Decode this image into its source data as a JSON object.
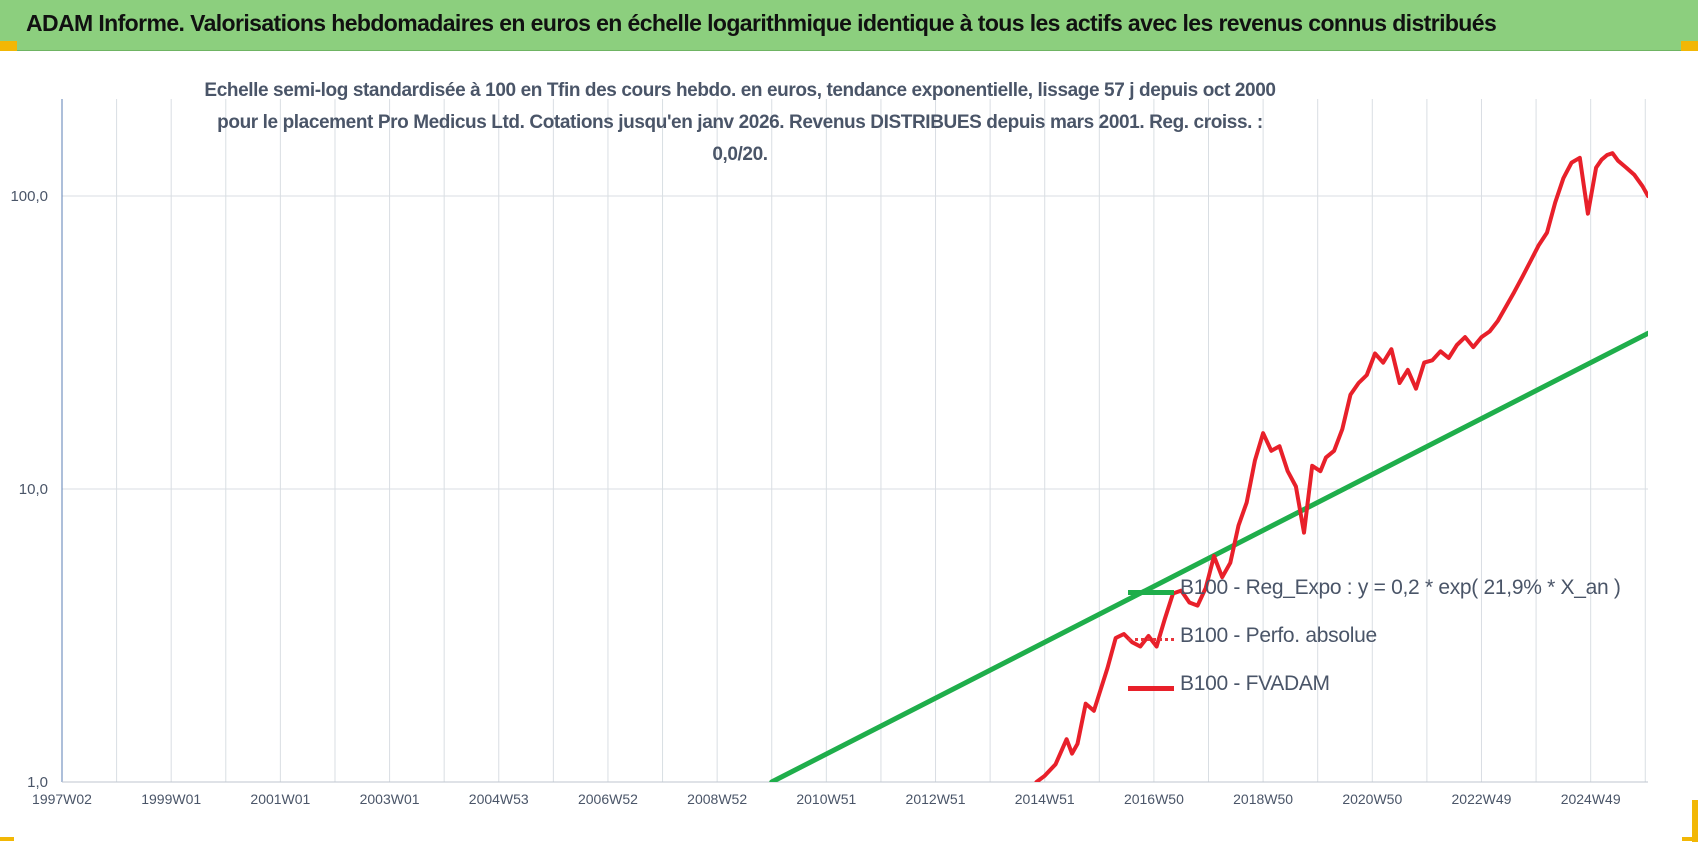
{
  "banner": {
    "title": "ADAM Informe. Valorisations hebdomadaires en euros en échelle logarithmique identique à tous les actifs avec les revenus connus distribués"
  },
  "colors": {
    "banner_bg": "#8ccf7e",
    "corner_accent": "#f2b705",
    "series_red": "#e8202a",
    "series_green": "#1fae4b",
    "axis_text": "#4a5568",
    "grid": "#d9dee3"
  },
  "chart_data": {
    "type": "line",
    "title": "Echelle semi-log standardisée à 100 en Tfin des cours hebdo. en euros, tendance exponentielle, lissage 57 j depuis oct 2000 pour le placement Pro Medicus Ltd. Cotations jusqu'en janv 2026. Revenus DISTRIBUES depuis mars 2001. Reg. croiss. : 0,0/20.",
    "y_scale": "log",
    "ylim": [
      1,
      200
    ],
    "y_ticks": [
      {
        "value": 1,
        "label": "1,0"
      },
      {
        "value": 10,
        "label": "10,0"
      },
      {
        "value": 100,
        "label": "100,0"
      }
    ],
    "xlim": [
      1997.0,
      2026.05
    ],
    "x_ticks": [
      {
        "value": 1997.0,
        "label": "1997W02"
      },
      {
        "value": 1999.0,
        "label": "1999W01"
      },
      {
        "value": 2001.0,
        "label": "2001W01"
      },
      {
        "value": 2003.0,
        "label": "2003W01"
      },
      {
        "value": 2005.0,
        "label": "2004W53"
      },
      {
        "value": 2007.0,
        "label": "2006W52"
      },
      {
        "value": 2009.0,
        "label": "2008W52"
      },
      {
        "value": 2011.0,
        "label": "2010W51"
      },
      {
        "value": 2013.0,
        "label": "2012W51"
      },
      {
        "value": 2015.0,
        "label": "2014W51"
      },
      {
        "value": 2017.0,
        "label": "2016W50"
      },
      {
        "value": 2019.0,
        "label": "2018W50"
      },
      {
        "value": 2021.0,
        "label": "2020W50"
      },
      {
        "value": 2023.0,
        "label": "2022W49"
      },
      {
        "value": 2025.0,
        "label": "2024W49"
      }
    ],
    "grid": true,
    "legend_position": "center-right",
    "series": [
      {
        "name": "B100 - Reg_Expo : y = 0,2 * exp( 21,9% *  X_an )",
        "style": "solid",
        "color": "#1fae4b",
        "x": [
          2010.0,
          2026.05
        ],
        "y": [
          1.0,
          34.0
        ]
      },
      {
        "name": "B100 - Perfo. absolue",
        "style": "dotted",
        "color": "#e8343b",
        "x": [],
        "y": []
      },
      {
        "name": "B100 - FVADAM",
        "style": "solid",
        "color": "#e8202a",
        "x": [
          2014.85,
          2015.0,
          2015.2,
          2015.4,
          2015.5,
          2015.6,
          2015.75,
          2015.9,
          2016.0,
          2016.15,
          2016.3,
          2016.45,
          2016.6,
          2016.75,
          2016.9,
          2017.05,
          2017.2,
          2017.35,
          2017.5,
          2017.65,
          2017.8,
          2017.95,
          2018.1,
          2018.25,
          2018.4,
          2018.55,
          2018.7,
          2018.85,
          2019.0,
          2019.15,
          2019.3,
          2019.45,
          2019.6,
          2019.75,
          2019.9,
          2020.05,
          2020.15,
          2020.3,
          2020.45,
          2020.6,
          2020.75,
          2020.9,
          2021.05,
          2021.2,
          2021.35,
          2021.5,
          2021.65,
          2021.8,
          2021.95,
          2022.1,
          2022.25,
          2022.4,
          2022.55,
          2022.7,
          2022.85,
          2023.0,
          2023.15,
          2023.3,
          2023.45,
          2023.6,
          2023.75,
          2023.9,
          2024.05,
          2024.2,
          2024.35,
          2024.5,
          2024.65,
          2024.8,
          2024.95,
          2025.1,
          2025.2,
          2025.3,
          2025.4,
          2025.5,
          2025.65,
          2025.8,
          2025.95,
          2026.05
        ],
        "y": [
          1.0,
          1.05,
          1.15,
          1.4,
          1.25,
          1.35,
          1.85,
          1.75,
          2.0,
          2.45,
          3.1,
          3.2,
          3.0,
          2.9,
          3.15,
          2.9,
          3.6,
          4.4,
          4.5,
          4.1,
          4.0,
          4.6,
          5.9,
          5.0,
          5.6,
          7.5,
          9.0,
          12.5,
          15.5,
          13.5,
          14.0,
          11.5,
          10.2,
          7.1,
          12.0,
          11.5,
          12.8,
          13.5,
          16.0,
          21.0,
          23.0,
          24.5,
          29.0,
          27.0,
          30.0,
          23.0,
          25.5,
          22.0,
          27.0,
          27.5,
          29.5,
          28.0,
          31.0,
          33.0,
          30.5,
          33.0,
          34.5,
          37.5,
          42.0,
          47.0,
          53.0,
          60.0,
          68.0,
          75.0,
          95.0,
          115.0,
          130.0,
          135.0,
          87.0,
          125.0,
          133.0,
          138.0,
          140.0,
          132.0,
          125.0,
          118.0,
          108.0,
          100.0
        ]
      }
    ]
  }
}
